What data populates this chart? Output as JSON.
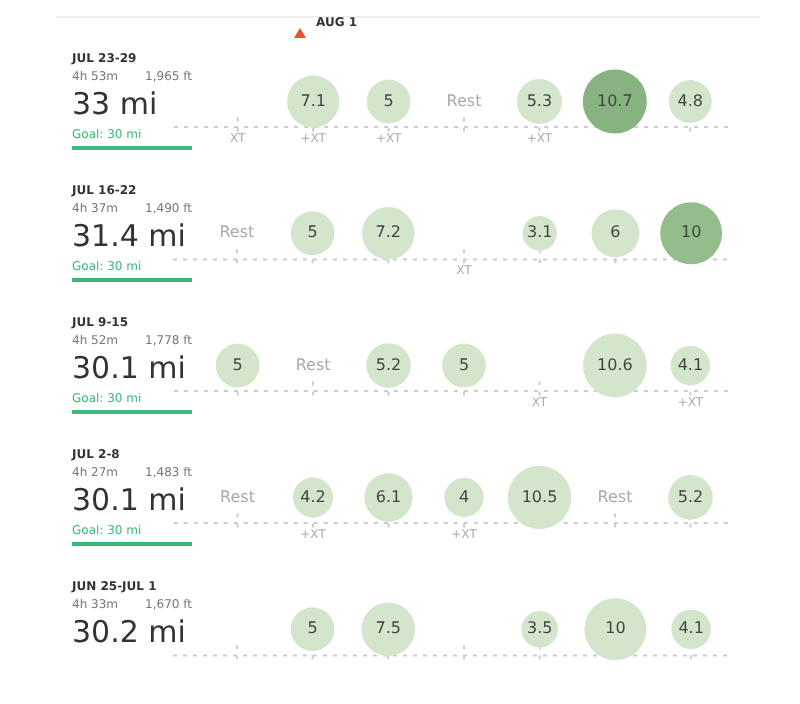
{
  "chart_data": [
    {
      "type": "other",
      "title": "JUL 23-29",
      "subtitle": "4h 53m",
      "annotations": [
        "1,965 ft",
        "33 mi",
        "Goal: 30 mi",
        "AUG 1",
        "XT",
        "+XT",
        "+XT",
        "+XT"
      ],
      "categories": [
        null,
        null,
        null,
        null,
        null,
        null,
        null
      ],
      "series": [
        {
          "values": [
            null,
            7.1,
            5,
            null,
            5.3,
            10.7,
            4.8
          ],
          "colors": [
            null,
            "#d3e6cc",
            "#d3e6cc",
            null,
            "#d3e6cc",
            "#86b37f",
            "#d3e6cc"
          ],
          "value_labels": [
            null,
            "7.1",
            "5",
            "Rest",
            "5.3",
            "10.7",
            "4.8"
          ]
        }
      ]
    },
    {
      "type": "other",
      "title": "JUL 16-22",
      "subtitle": "4h 37m",
      "annotations": [
        "1,490 ft",
        "31.4 mi",
        "Goal: 30 mi",
        "XT"
      ],
      "categories": [
        null,
        null,
        null,
        null,
        null,
        null,
        null
      ],
      "series": [
        {
          "values": [
            null,
            5,
            7.2,
            null,
            3.1,
            6,
            10
          ],
          "colors": [
            null,
            "#d3e6cc",
            "#d3e6cc",
            null,
            "#d3e6cc",
            "#d3e6cc",
            "#93bd8b"
          ],
          "value_labels": [
            "Rest",
            "5",
            "7.2",
            null,
            "3.1",
            "6",
            "10"
          ]
        }
      ]
    },
    {
      "type": "other",
      "title": "JUL 9-15",
      "subtitle": "4h 52m",
      "annotations": [
        "1,778 ft",
        "30.1 mi",
        "Goal: 30 mi",
        "XT",
        "+XT"
      ],
      "categories": [
        null,
        null,
        null,
        null,
        null,
        null,
        null
      ],
      "series": [
        {
          "values": [
            5,
            null,
            5.2,
            5,
            null,
            10.6,
            4.1
          ],
          "colors": [
            "#d3e6cc",
            null,
            "#d3e6cc",
            "#d3e6cc",
            null,
            "#d3e6cc",
            "#d3e6cc"
          ],
          "value_labels": [
            "5",
            "Rest",
            "5.2",
            "5",
            null,
            "10.6",
            "4.1"
          ]
        }
      ]
    },
    {
      "type": "other",
      "title": "JUL 2-8",
      "subtitle": "4h 27m",
      "annotations": [
        "1,483 ft",
        "30.1 mi",
        "Goal: 30 mi",
        "+XT",
        "+XT"
      ],
      "categories": [
        null,
        null,
        null,
        null,
        null,
        null,
        null
      ],
      "series": [
        {
          "values": [
            null,
            4.2,
            6.1,
            4,
            10.5,
            null,
            5.2
          ],
          "colors": [
            null,
            "#d3e6cc",
            "#d3e6cc",
            "#d3e6cc",
            "#d3e6cc",
            null,
            "#d3e6cc"
          ],
          "value_labels": [
            "Rest",
            "4.2",
            "6.1",
            "4",
            "10.5",
            "Rest",
            "5.2"
          ]
        }
      ]
    },
    {
      "type": "other",
      "title": "JUN 25-JUL 1",
      "subtitle": "4h 33m",
      "annotations": [
        "1,670 ft",
        "30.2 mi"
      ],
      "categories": [
        null,
        null,
        null,
        null,
        null,
        null,
        null
      ],
      "series": [
        {
          "values": [
            null,
            5,
            7.5,
            null,
            3.5,
            10,
            4.1
          ],
          "colors": [
            null,
            "#d3e6cc",
            "#d3e6cc",
            null,
            "#d3e6cc",
            "#d3e6cc",
            "#d3e6cc"
          ],
          "value_labels": [
            null,
            "5",
            "7.5",
            null,
            "3.5",
            "10",
            "4.1"
          ]
        }
      ]
    }
  ]
}
